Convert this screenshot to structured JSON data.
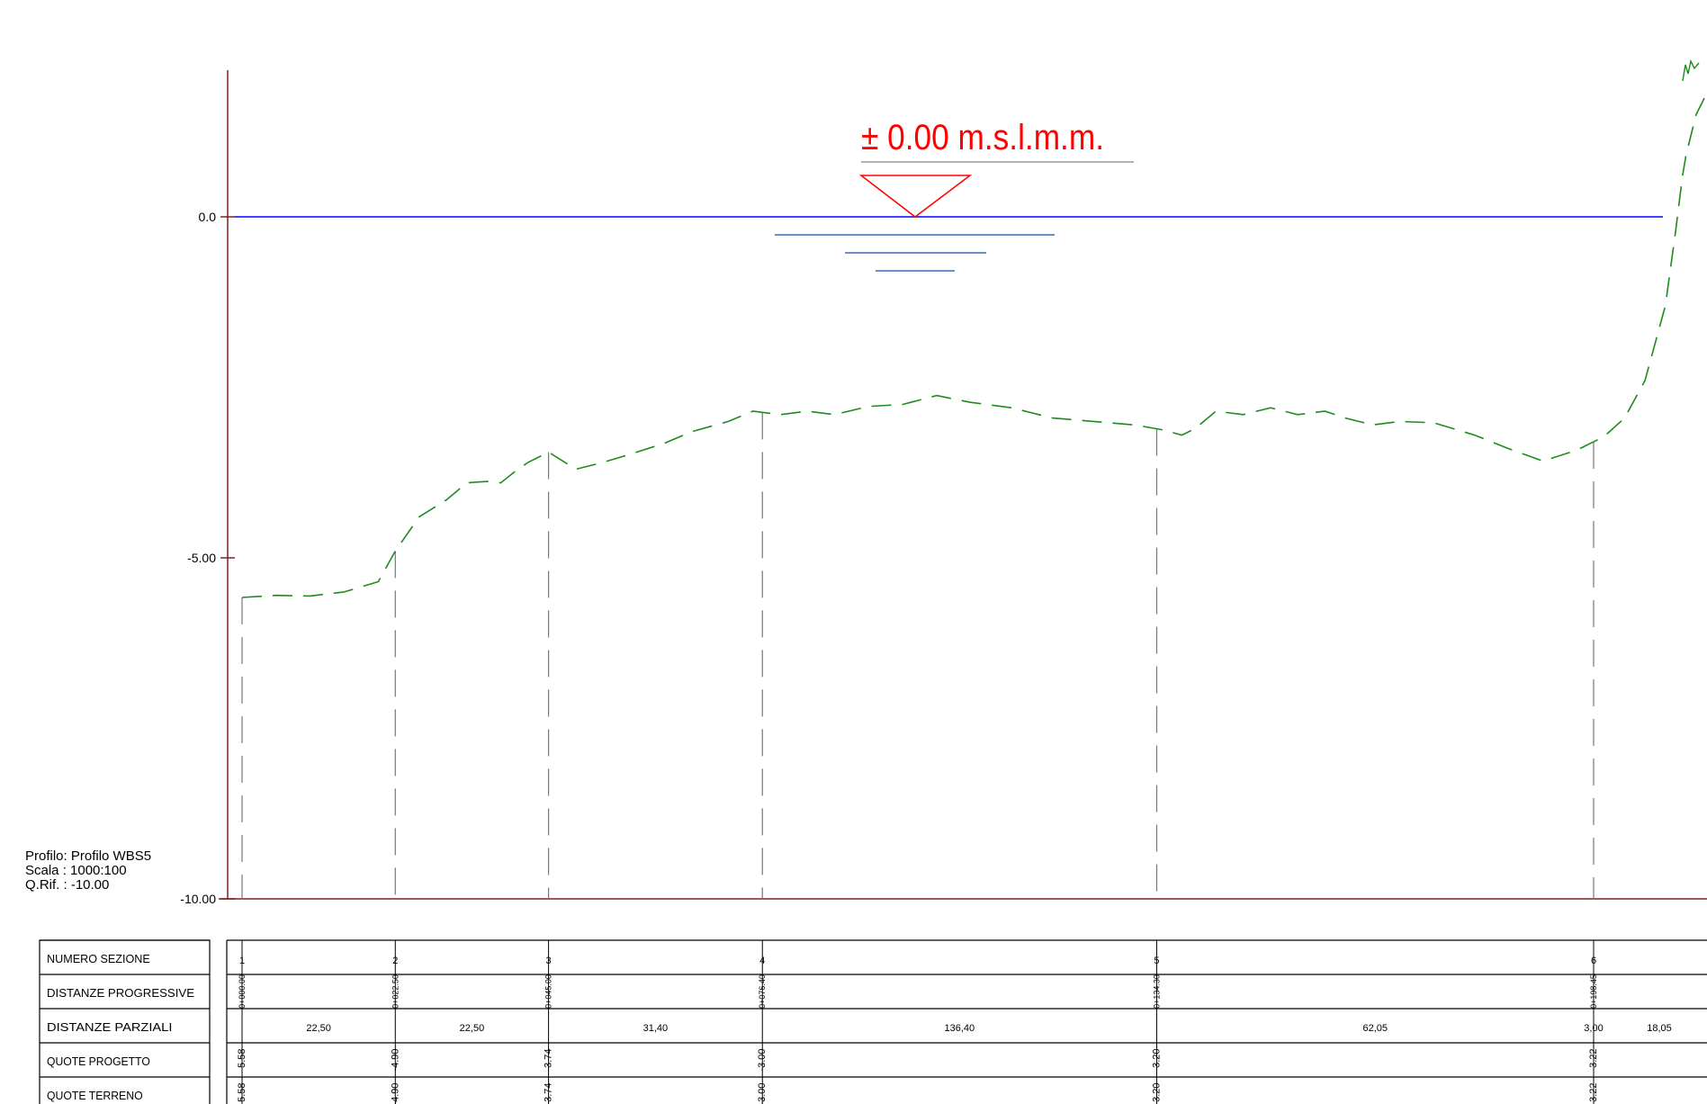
{
  "profile_info": {
    "profilo": "Profilo: Profilo WBS5",
    "scala": "Scala : 1000:100",
    "qrif": "Q.Rif. : -10.00"
  },
  "reference_level": {
    "label": "± 0.00 m.s.l.m.m.",
    "value": 0.0,
    "color": "#ff0000"
  },
  "colors": {
    "axis": "#7a2020",
    "water_line": "#0000ff",
    "water_marks": "#3a6fb5",
    "terrain": "#1f8a1f",
    "grid": "#000000",
    "section_lines": "#777777"
  },
  "chart_data": {
    "type": "line",
    "title": "",
    "xlabel": "",
    "ylabel": "",
    "y_ticks": [
      {
        "value": 0.0,
        "label": "0.0"
      },
      {
        "value": -5.0,
        "label": "-5.00"
      },
      {
        "value": -10.0,
        "label": "-10.00"
      }
    ],
    "ylim": [
      -10.0,
      2.3
    ],
    "xlim": [
      -1.2,
      254
    ],
    "grid": false,
    "series": [
      {
        "style": "dashed",
        "color": "#1f8a1f",
        "points": [
          [
            0,
            -5.58
          ],
          [
            5,
            -5.55
          ],
          [
            10,
            -5.56
          ],
          [
            15,
            -5.5
          ],
          [
            20,
            -5.35
          ],
          [
            22.5,
            -4.9
          ],
          [
            26,
            -4.4
          ],
          [
            30,
            -4.15
          ],
          [
            33,
            -3.9
          ],
          [
            36,
            -3.88
          ],
          [
            38,
            -3.9
          ],
          [
            40,
            -3.74
          ],
          [
            42,
            -3.6
          ],
          [
            45,
            -3.45
          ],
          [
            49,
            -3.7
          ],
          [
            53,
            -3.6
          ],
          [
            57,
            -3.48
          ],
          [
            62,
            -3.32
          ],
          [
            66,
            -3.15
          ],
          [
            71.4,
            -3.0
          ],
          [
            75,
            -2.85
          ],
          [
            79,
            -2.9
          ],
          [
            83,
            -2.85
          ],
          [
            87,
            -2.9
          ],
          [
            92,
            -2.78
          ],
          [
            97,
            -2.75
          ],
          [
            102,
            -2.62
          ],
          [
            107,
            -2.72
          ],
          [
            113,
            -2.8
          ],
          [
            119,
            -2.95
          ],
          [
            125,
            -3.0
          ],
          [
            131,
            -3.05
          ],
          [
            135,
            -3.12
          ],
          [
            138,
            -3.2
          ],
          [
            140,
            -3.1
          ],
          [
            143,
            -2.85
          ],
          [
            147,
            -2.9
          ],
          [
            151,
            -2.8
          ],
          [
            155,
            -2.9
          ],
          [
            159,
            -2.85
          ],
          [
            162,
            -2.95
          ],
          [
            166,
            -3.05
          ],
          [
            170,
            -3.0
          ],
          [
            175,
            -3.02
          ],
          [
            181,
            -3.2
          ],
          [
            186,
            -3.4
          ],
          [
            191,
            -3.58
          ],
          [
            196,
            -3.42
          ],
          [
            200.0,
            -3.22
          ],
          [
            203,
            -2.95
          ],
          [
            206,
            -2.4
          ],
          [
            209,
            -1.3
          ],
          [
            210.5,
            -0.2
          ],
          [
            211.5,
            0.6
          ],
          [
            212,
            0.9
          ],
          [
            213.5,
            1.5
          ],
          [
            215,
            1.8
          ],
          [
            216,
            2.0
          ]
        ]
      }
    ],
    "sections": [
      {
        "id": "1",
        "progressive": "0+000.00",
        "partial": "22,50",
        "quota_progetto": "-5.58",
        "quota_terreno": "-5.58",
        "x": 0.0
      },
      {
        "id": "2",
        "progressive": "0+022.50",
        "partial": "22,50",
        "quota_progetto": "-4.90",
        "quota_terreno": "-4.90",
        "x": 22.5
      },
      {
        "id": "3",
        "progressive": "0+045.00",
        "partial": "31,40",
        "quota_progetto": "-3.74",
        "quota_terreno": "-3.74",
        "x": 45.0
      },
      {
        "id": "4",
        "progressive": "0+076.40",
        "partial": "136,40",
        "quota_progetto": "-3.00",
        "quota_terreno": "-3.00",
        "x": 76.4
      },
      {
        "id": "5",
        "progressive": "0+134.30",
        "partial": "62,05",
        "quota_progetto": "-3.20",
        "quota_terreno": "-3.20",
        "x": 134.3
      },
      {
        "id": "6",
        "progressive": "0+198.45",
        "partial": "3,00",
        "quota_progetto": "-3.22",
        "quota_terreno": "-3.22",
        "x": 198.45
      }
    ],
    "partial_extra": "18,05"
  },
  "table": {
    "row_labels": [
      "NUMERO SEZIONE",
      "DISTANZE PROGRESSIVE",
      "DISTANZE PARZIALI",
      "QUOTE PROGETTO",
      "QUOTE TERRENO"
    ]
  }
}
